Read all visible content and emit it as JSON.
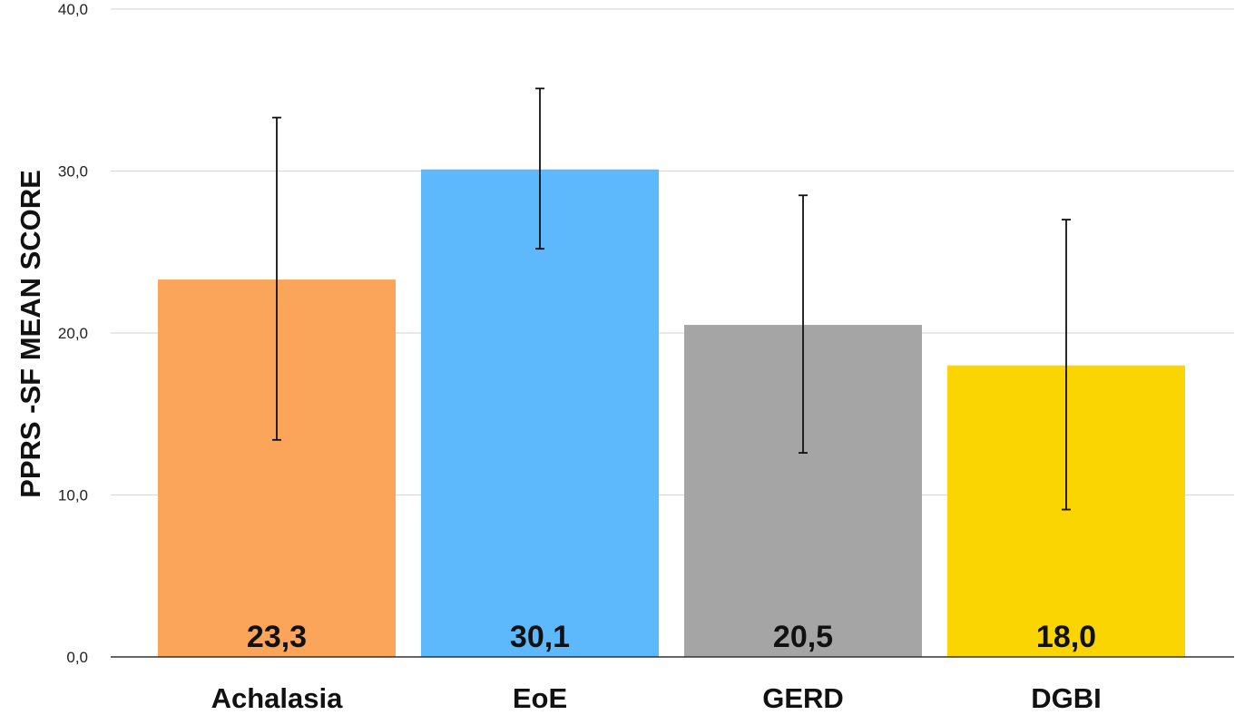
{
  "chart_data": {
    "type": "bar",
    "title": "",
    "xlabel": "",
    "ylabel": "PPRS -SF  MEAN SCORE",
    "ylim": [
      0,
      40
    ],
    "yticks": [
      0,
      10,
      20,
      30,
      40
    ],
    "ytick_labels": [
      "0,0",
      "10,0",
      "20,0",
      "30,0",
      "40,0"
    ],
    "grid": true,
    "legend": "none",
    "categories": [
      "Achalasia",
      "EoE",
      "GERD",
      "DGBI"
    ],
    "values": [
      23.3,
      30.1,
      20.5,
      18.0
    ],
    "value_labels": [
      "23,3",
      "30,1",
      "20,5",
      "18,0"
    ],
    "error_low": [
      13.4,
      25.2,
      12.6,
      9.1
    ],
    "error_high": [
      33.3,
      35.1,
      28.5,
      27.0
    ],
    "colors": [
      "#FBA55A",
      "#5EB8FC",
      "#A5A5A5",
      "#FBD501"
    ]
  }
}
